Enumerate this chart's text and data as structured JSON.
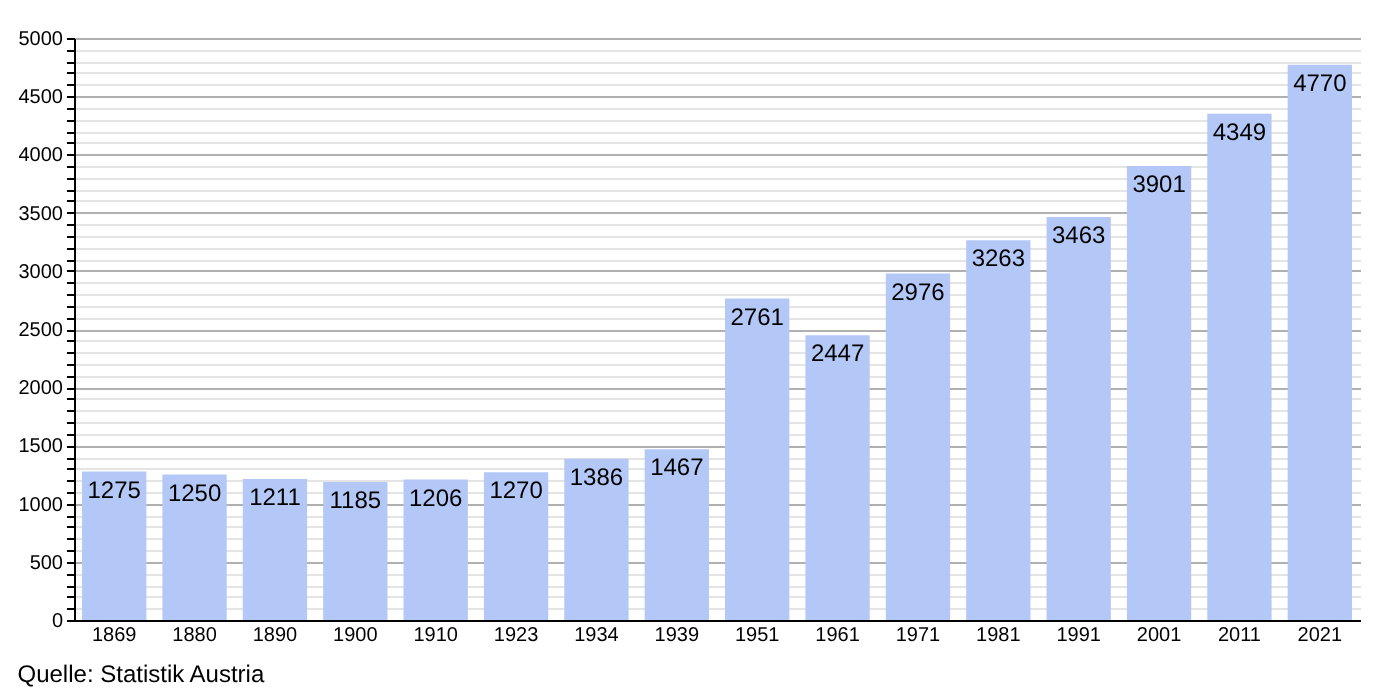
{
  "chart_data": {
    "type": "bar",
    "categories": [
      "1869",
      "1880",
      "1890",
      "1900",
      "1910",
      "1923",
      "1934",
      "1939",
      "1951",
      "1961",
      "1971",
      "1981",
      "1991",
      "2001",
      "2011",
      "2021"
    ],
    "values": [
      1275,
      1250,
      1211,
      1185,
      1206,
      1270,
      1386,
      1467,
      2761,
      2447,
      2976,
      3263,
      3463,
      3901,
      4349,
      4770
    ],
    "color": "#b3c8f7",
    "ylim": [
      0,
      5000
    ],
    "yticks": [
      0,
      {
        "value": 100,
        "label": null
      },
      {
        "value": 200,
        "label": null
      },
      {
        "value": 300,
        "label": null
      },
      {
        "value": 400,
        "label": null
      },
      500,
      {
        "value": 600,
        "label": null
      },
      {
        "value": 700,
        "label": null
      },
      {
        "value": 800,
        "label": null
      },
      {
        "value": 900,
        "label": null
      },
      1000,
      {
        "value": 1100,
        "label": null
      },
      {
        "value": 1200,
        "label": null
      },
      {
        "value": 1300,
        "label": null
      },
      {
        "value": 1400,
        "label": null
      },
      1500,
      {
        "value": 1600,
        "label": null
      },
      {
        "value": 1700,
        "label": null
      },
      {
        "value": 1800,
        "label": null
      },
      {
        "value": 1900,
        "label": null
      },
      2000,
      {
        "value": 2100,
        "label": null
      },
      {
        "value": 2200,
        "label": null
      },
      {
        "value": 2300,
        "label": null
      },
      {
        "value": 2400,
        "label": null
      },
      2500,
      {
        "value": 2600,
        "label": null
      },
      {
        "value": 2700,
        "label": null
      },
      {
        "value": 2800,
        "label": null
      },
      {
        "value": 2900,
        "label": null
      },
      3000,
      {
        "value": 3100,
        "label": null
      },
      {
        "value": 3200,
        "label": null
      },
      {
        "value": 3300,
        "label": null
      },
      {
        "value": 3400,
        "label": null
      },
      3500,
      {
        "value": 3600,
        "label": null
      },
      {
        "value": 3700,
        "label": null
      },
      {
        "value": 3800,
        "label": null
      },
      {
        "value": 3900,
        "label": null
      },
      4000,
      {
        "value": 4100,
        "label": null
      },
      {
        "value": 4200,
        "label": null
      },
      {
        "value": 4300,
        "label": null
      },
      {
        "value": 4400,
        "label": null
      },
      4500,
      {
        "value": 4600,
        "label": null
      },
      {
        "value": 4700,
        "label": null
      },
      {
        "value": 4800,
        "label": null
      },
      {
        "value": 4900,
        "label": null
      },
      5000
    ],
    "grid": true,
    "data_labels": true,
    "annotations": [
      "Quelle: Statistik Austria"
    ]
  }
}
